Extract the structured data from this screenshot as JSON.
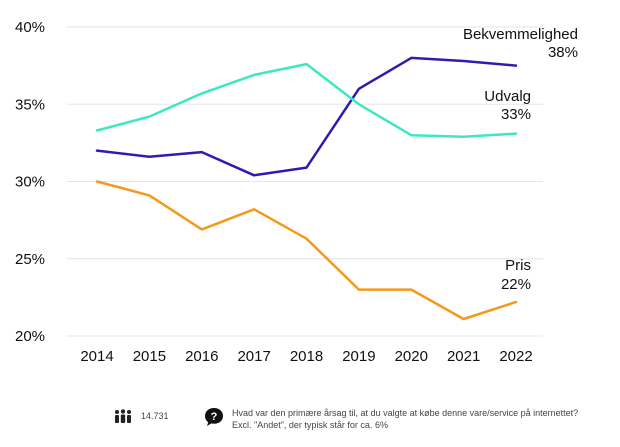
{
  "chart_data": {
    "type": "line",
    "x": [
      "2014",
      "2015",
      "2016",
      "2017",
      "2018",
      "2019",
      "2020",
      "2021",
      "2022"
    ],
    "ylim": [
      20,
      40
    ],
    "yticks": [
      40,
      35,
      30,
      25,
      20
    ],
    "ytick_labels": [
      "40%",
      "35%",
      "30%",
      "25%",
      "20%"
    ],
    "grid": true,
    "series": [
      {
        "name": "Bekvemmelighed",
        "end_label": "38%",
        "color": "#2c1db0",
        "values": [
          32.0,
          31.6,
          31.9,
          30.4,
          30.9,
          36.0,
          38.0,
          37.8,
          37.5
        ]
      },
      {
        "name": "Udvalg",
        "end_label": "33%",
        "color": "#3de8c0",
        "values": [
          33.3,
          34.2,
          35.7,
          36.9,
          37.6,
          35.0,
          33.0,
          32.9,
          33.1
        ]
      },
      {
        "name": "Pris",
        "end_label": "22%",
        "color": "#f4991c",
        "values": [
          30.0,
          29.1,
          26.9,
          28.2,
          26.3,
          23.0,
          23.0,
          21.1,
          22.2
        ]
      }
    ]
  },
  "footer": {
    "respondents_icon": "people-icon",
    "respondents": "14.731",
    "question_icon": "question-bubble-icon",
    "question_line1": "Hvad var den primære årsag til, at du valgte at købe denne vare/service på internettet?",
    "question_line2": "Excl. \"Andet\", der typisk står for ca. 6%"
  }
}
